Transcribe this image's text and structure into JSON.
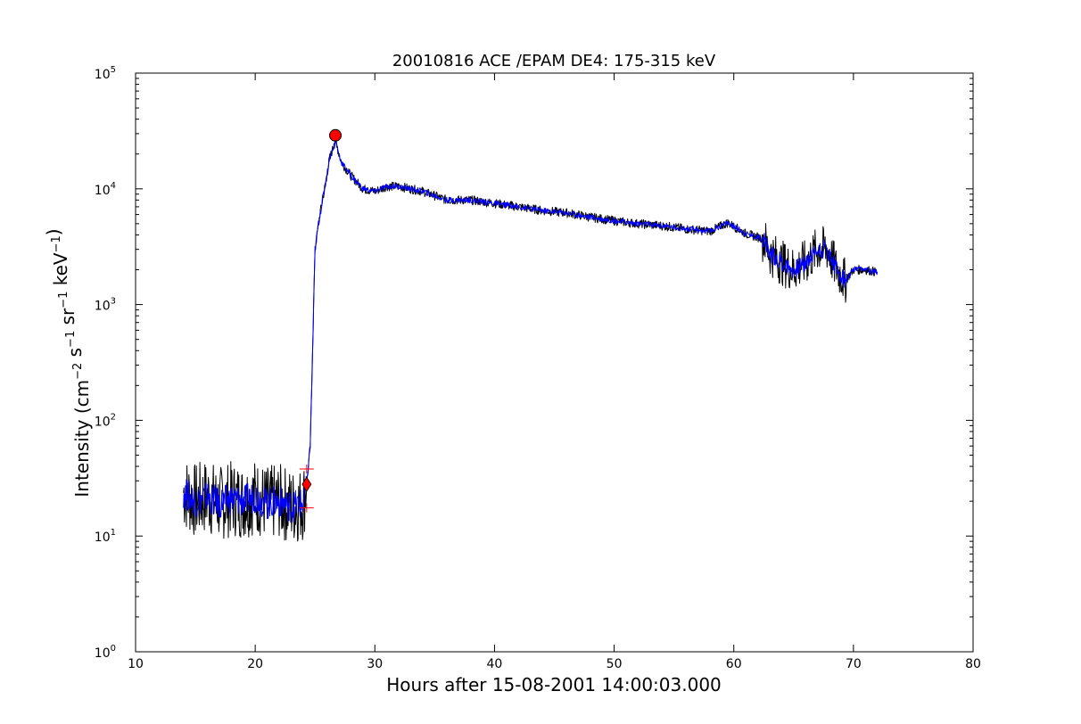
{
  "chart_data": {
    "type": "line",
    "title": "20010816 ACE /EPAM DE4: 175-315 keV",
    "xlabel": "Hours after 15-08-2001 14:00:03.000",
    "ylabel_prefix": "Intensity (cm",
    "ylabel_tokens": [
      {
        "base": "Intensity (cm",
        "sup": "−2"
      },
      {
        "base": " s",
        "sup": "−1"
      },
      {
        "base": " sr",
        "sup": "−1"
      },
      {
        "base": " keV",
        "sup": "−1"
      },
      {
        "base": ")",
        "sup": ""
      }
    ],
    "xlim": [
      10,
      80
    ],
    "ylim": [
      1,
      100000
    ],
    "yscale": "log",
    "grid": false,
    "x_ticks": [
      10,
      20,
      30,
      40,
      50,
      60,
      70,
      80
    ],
    "x_tick_labels": [
      "10",
      "20",
      "30",
      "40",
      "50",
      "60",
      "70",
      "80"
    ],
    "y_ticks": [
      {
        "value": 1,
        "base": "10",
        "exp": "0"
      },
      {
        "value": 10,
        "base": "10",
        "exp": "1"
      },
      {
        "value": 100,
        "base": "10",
        "exp": "2"
      },
      {
        "value": 1000,
        "base": "10",
        "exp": "3"
      },
      {
        "value": 10000,
        "base": "10",
        "exp": "4"
      },
      {
        "value": 100000,
        "base": "10",
        "exp": "5"
      }
    ],
    "series": [
      {
        "color": "#000000",
        "style": "raw",
        "x": [
          14.0,
          15.0,
          16.0,
          17.0,
          18.0,
          19.0,
          20.0,
          21.0,
          22.0,
          23.0,
          24.0,
          24.3,
          24.6,
          25.0,
          25.4,
          25.8,
          26.2,
          26.7,
          27.2,
          28.0,
          29.0,
          30.0,
          31.0,
          32.0,
          34.0,
          36.0,
          38.0,
          40.0,
          42.0,
          44.0,
          46.0,
          48.0,
          50.0,
          52.0,
          54.0,
          56.0,
          58.0,
          59.5,
          61.0,
          62.5,
          63.0,
          64.0,
          65.0,
          66.0,
          67.0,
          67.8,
          68.5,
          69.3,
          70.0,
          71.0,
          72.0
        ],
        "y": [
          24,
          20,
          22,
          19,
          21,
          20,
          22,
          19,
          20,
          18,
          19,
          28,
          60,
          3000,
          6000,
          10000,
          18000,
          26000,
          17000,
          13000,
          10000,
          9500,
          10500,
          10500,
          9500,
          8000,
          8000,
          7500,
          7000,
          6500,
          6200,
          5700,
          5300,
          5000,
          4800,
          4500,
          4300,
          5100,
          4100,
          3700,
          2800,
          2300,
          2000,
          2300,
          3000,
          3000,
          2100,
          1600,
          2000,
          2000,
          1900
        ]
      },
      {
        "color": "#0000ff",
        "style": "smoothed",
        "x": [
          14.0,
          15.0,
          16.0,
          17.0,
          18.0,
          19.0,
          20.0,
          21.0,
          22.0,
          23.0,
          24.0,
          24.3,
          24.6,
          25.0,
          25.4,
          25.8,
          26.2,
          26.7,
          27.2,
          28.0,
          29.0,
          30.0,
          31.0,
          32.0,
          34.0,
          36.0,
          38.0,
          40.0,
          42.0,
          44.0,
          46.0,
          48.0,
          50.0,
          52.0,
          54.0,
          56.0,
          58.0,
          59.5,
          61.0,
          62.5,
          63.0,
          64.0,
          65.0,
          66.0,
          67.0,
          67.8,
          68.5,
          69.3,
          70.0,
          71.0,
          72.0
        ],
        "y": [
          24,
          20,
          22,
          19,
          21,
          20,
          22,
          19,
          20,
          18,
          19,
          28,
          60,
          3000,
          6000,
          10000,
          18000,
          26000,
          17000,
          13000,
          10000,
          9500,
          10500,
          10500,
          9500,
          8000,
          8000,
          7500,
          7000,
          6500,
          6200,
          5700,
          5300,
          5000,
          4800,
          4500,
          4300,
          5100,
          4100,
          3700,
          2800,
          2300,
          2000,
          2300,
          3000,
          3000,
          2100,
          1600,
          2000,
          2000,
          1900
        ]
      }
    ],
    "markers": [
      {
        "type": "circle",
        "x": 26.7,
        "y": 29000,
        "color": "#ff0000"
      },
      {
        "type": "diamond",
        "x": 24.3,
        "y": 28,
        "color": "#ff0000"
      },
      {
        "type": "plus",
        "x": 24.3,
        "y": 38,
        "color": "#ff0000"
      },
      {
        "type": "plus",
        "x": 24.3,
        "y": 17.5,
        "color": "#ff0000"
      }
    ]
  }
}
